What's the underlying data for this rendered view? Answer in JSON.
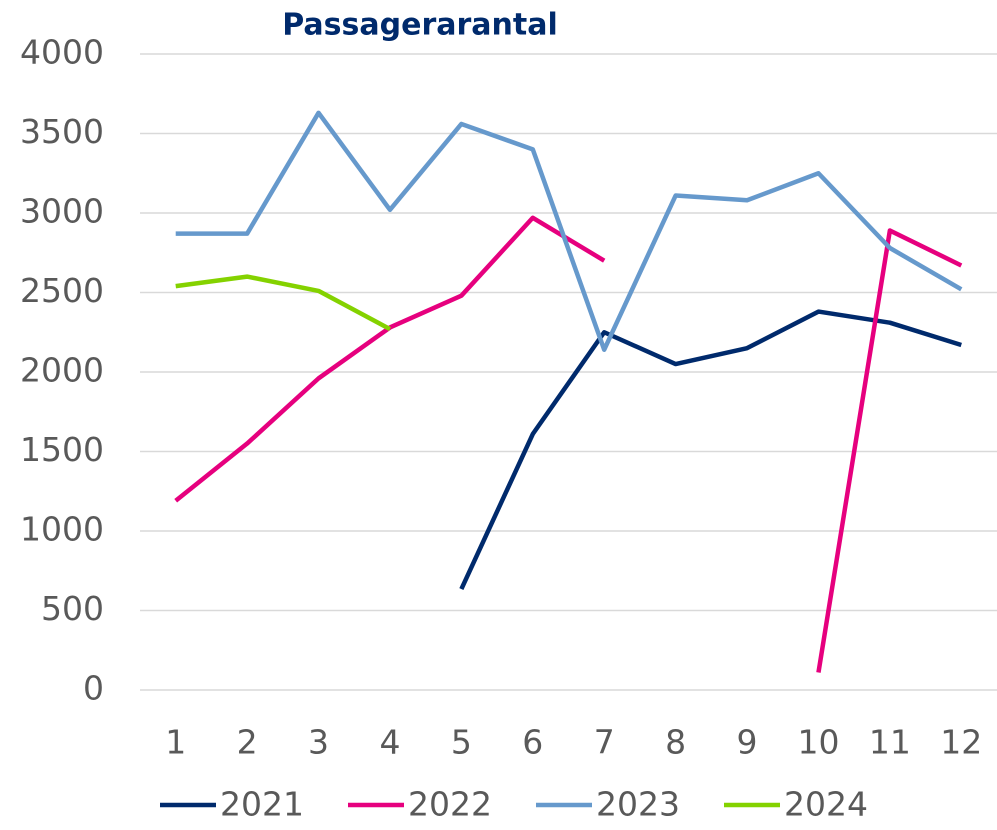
{
  "chart_data": {
    "type": "line",
    "title": "Passagerarantal",
    "categories": [
      "1",
      "2",
      "3",
      "4",
      "5",
      "6",
      "7",
      "8",
      "9",
      "10",
      "11",
      "12"
    ],
    "series": [
      {
        "name": "2021",
        "color": "#002a6c",
        "values": [
          null,
          null,
          null,
          null,
          635,
          1610,
          2250,
          2050,
          2150,
          2380,
          2310,
          2170
        ]
      },
      {
        "name": "2022",
        "color": "#e6007e",
        "values": [
          1190,
          1550,
          1960,
          2280,
          2480,
          2970,
          2700,
          null,
          null,
          110,
          2890,
          2670
        ]
      },
      {
        "name": "2023",
        "color": "#6699cc",
        "values": [
          2870,
          2870,
          3630,
          3020,
          3560,
          3400,
          2140,
          3110,
          3080,
          3250,
          2780,
          2520
        ]
      },
      {
        "name": "2024",
        "color": "#84d200",
        "values": [
          2540,
          2600,
          2510,
          2270,
          null,
          null,
          null,
          null,
          null,
          null,
          null,
          null
        ]
      }
    ],
    "ylim": [
      0,
      4000
    ],
    "yticks": [
      0,
      500,
      1000,
      1500,
      2000,
      2500,
      3000,
      3500,
      4000
    ],
    "grid": true,
    "legend": "bottom"
  }
}
